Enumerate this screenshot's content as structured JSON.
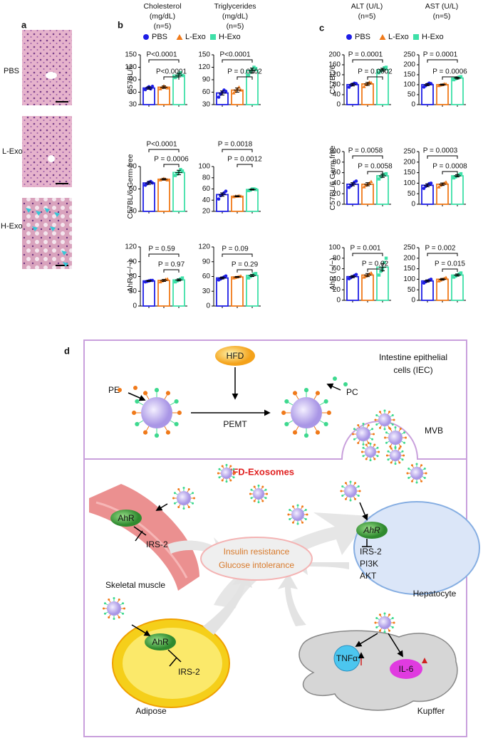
{
  "panel_labels": {
    "a": "a",
    "b": "b",
    "c": "c",
    "d": "d"
  },
  "histology": {
    "labels": [
      "PBS",
      "L-Exo",
      "H-Exo"
    ]
  },
  "column_headers": [
    [
      "Cholesterol",
      "(mg/dL)",
      "(n=5)"
    ],
    [
      "Triglycerides",
      "(mg/dL)",
      "(n=5)"
    ],
    [
      "ALT (U/L)",
      "(n=5)"
    ],
    [
      "AST (U/L)",
      "(n=5)"
    ]
  ],
  "row_labels": {
    "b": [
      "C57BL/6",
      "C57BL/6 Germ free",
      "AhR (−/−)"
    ],
    "c": [
      "C57BL/6",
      "C57BL/6 Germ free",
      "AhR (−/−)"
    ]
  },
  "legend": [
    {
      "name": "PBS",
      "color": "#1e1ee6"
    },
    {
      "name": "L-Exo",
      "color": "#f07a1a"
    },
    {
      "name": "H-Exo",
      "color": "#3ee0a8"
    }
  ],
  "chart_data": [
    {
      "type": "bar",
      "categories": [
        null,
        null,
        null
      ],
      "values": [
        70,
        72,
        101
      ],
      "errors": [
        3,
        3,
        4
      ],
      "points": [
        [
          66,
          70,
          73,
          68,
          74
        ],
        [
          68,
          71,
          75,
          72,
          70
        ],
        [
          95,
          98,
          104,
          107,
          100
        ]
      ],
      "ylim": [
        30,
        150
      ],
      "yticks": [
        30,
        60,
        90,
        120,
        150
      ],
      "annotations": [
        "P<0.0001",
        "P<0.0001"
      ]
    },
    {
      "type": "bar",
      "categories": [
        null,
        null,
        null
      ],
      "values": [
        58,
        65,
        112
      ],
      "errors": [
        5,
        5,
        6
      ],
      "points": [
        [
          48,
          55,
          60,
          65,
          62
        ],
        [
          58,
          62,
          68,
          72,
          65
        ],
        [
          100,
          108,
          115,
          120,
          117
        ]
      ],
      "ylim": [
        30,
        150
      ],
      "yticks": [
        30,
        60,
        90,
        120,
        150
      ],
      "annotations": [
        "P<0.0001",
        "P = 0.0002"
      ]
    },
    {
      "type": "bar",
      "categories": [
        null,
        null,
        null
      ],
      "values": [
        80,
        83,
        140
      ],
      "errors": [
        5,
        6,
        6
      ],
      "points": [
        [
          70,
          78,
          82,
          86,
          84
        ],
        [
          72,
          80,
          85,
          90,
          88
        ],
        [
          128,
          135,
          140,
          148,
          150
        ]
      ],
      "ylim": [
        0,
        200
      ],
      "yticks": [
        0,
        40,
        80,
        120,
        160,
        200
      ],
      "annotations": [
        "P = 0.0001",
        "P = 0.0002"
      ]
    },
    {
      "type": "bar",
      "categories": [
        null,
        null,
        null
      ],
      "values": [
        100,
        100,
        133
      ],
      "errors": [
        5,
        3,
        4
      ],
      "points": [
        [
          88,
          95,
          102,
          108,
          105
        ],
        [
          95,
          98,
          100,
          104,
          103
        ],
        [
          125,
          130,
          134,
          138,
          140
        ]
      ],
      "ylim": [
        0,
        250
      ],
      "yticks": [
        0,
        50,
        100,
        150,
        200,
        250
      ],
      "annotations": [
        "P = 0.0001",
        "P = 0.0006"
      ]
    },
    {
      "type": "bar",
      "categories": [
        null,
        null,
        null
      ],
      "values": [
        68,
        73,
        82
      ],
      "errors": [
        2,
        1,
        3
      ],
      "points": [
        [
          65,
          67,
          69,
          70,
          68
        ],
        [
          72,
          73,
          74,
          73,
          72
        ],
        [
          78,
          80,
          83,
          86,
          84
        ]
      ],
      "ylim": [
        30,
        90
      ],
      "yticks": [
        30,
        60,
        90
      ],
      "annotations": [
        "P<0.0001",
        "P = 0.0006"
      ]
    },
    {
      "type": "bar",
      "categories": [
        null,
        null,
        null
      ],
      "values": [
        50,
        47,
        59
      ],
      "errors": [
        3,
        1,
        1
      ],
      "points": [
        [
          42,
          48,
          50,
          53,
          56
        ],
        [
          46,
          47,
          47,
          48,
          47
        ],
        [
          57,
          58,
          60,
          60,
          59
        ]
      ],
      "ylim": [
        20,
        100
      ],
      "yticks": [
        20,
        40,
        60,
        80,
        100
      ],
      "annotations": [
        "P = 0.0018",
        "P = 0.0012"
      ]
    },
    {
      "type": "bar",
      "categories": [
        null,
        null,
        null
      ],
      "values": [
        38,
        38,
        54
      ],
      "errors": [
        3,
        3,
        3
      ],
      "points": [
        [
          32,
          35,
          38,
          42,
          44
        ],
        [
          33,
          36,
          38,
          40,
          43
        ],
        [
          48,
          52,
          55,
          57,
          58
        ]
      ],
      "ylim": [
        0,
        100
      ],
      "yticks": [
        0,
        20,
        40,
        60,
        80,
        100
      ],
      "annotations": [
        "P = 0.0058",
        "P = 0.0058"
      ]
    },
    {
      "type": "bar",
      "categories": [
        null,
        null,
        null
      ],
      "values": [
        90,
        95,
        135
      ],
      "errors": [
        7,
        6,
        5
      ],
      "points": [
        [
          75,
          85,
          92,
          98,
          100
        ],
        [
          82,
          90,
          96,
          100,
          105
        ],
        [
          125,
          130,
          135,
          140,
          145
        ]
      ],
      "ylim": [
        0,
        250
      ],
      "yticks": [
        0,
        50,
        100,
        150,
        200,
        250
      ],
      "annotations": [
        "P = 0.0003",
        "P = 0.0008"
      ]
    },
    {
      "type": "bar",
      "categories": [
        null,
        null,
        null
      ],
      "values": [
        51,
        52,
        53
      ],
      "errors": [
        1,
        2,
        2
      ],
      "points": [
        [
          49,
          50,
          51,
          52,
          52
        ],
        [
          49,
          51,
          52,
          54,
          55
        ],
        [
          49,
          51,
          53,
          55,
          57
        ]
      ],
      "ylim": [
        0,
        120
      ],
      "yticks": [
        0,
        30,
        60,
        90,
        120
      ],
      "annotations": [
        "P = 0.59",
        "P = 0.97"
      ]
    },
    {
      "type": "bar",
      "categories": [
        null,
        null,
        null
      ],
      "values": [
        57,
        59,
        62
      ],
      "errors": [
        2,
        1,
        2
      ],
      "points": [
        [
          53,
          55,
          57,
          59,
          61
        ],
        [
          57,
          58,
          59,
          60,
          61
        ],
        [
          57,
          60,
          62,
          65,
          66
        ]
      ],
      "ylim": [
        0,
        120
      ],
      "yticks": [
        0,
        30,
        60,
        90,
        120
      ],
      "annotations": [
        "P = 0.09",
        "P = 0.29"
      ]
    },
    {
      "type": "bar",
      "categories": [
        null,
        null,
        null
      ],
      "values": [
        45,
        48,
        63
      ],
      "errors": [
        2,
        3,
        7
      ],
      "points": [
        [
          41,
          43,
          45,
          47,
          49
        ],
        [
          44,
          46,
          48,
          50,
          52
        ],
        [
          48,
          55,
          60,
          72,
          80
        ]
      ],
      "ylim": [
        0,
        100
      ],
      "yticks": [
        0,
        20,
        40,
        60,
        80,
        100
      ],
      "annotations": [
        "P = 0.001",
        "P = 0.02"
      ]
    },
    {
      "type": "bar",
      "categories": [
        null,
        null,
        null
      ],
      "values": [
        92,
        100,
        120
      ],
      "errors": [
        5,
        4,
        5
      ],
      "points": [
        [
          82,
          88,
          92,
          96,
          100
        ],
        [
          92,
          96,
          100,
          104,
          108
        ],
        [
          110,
          115,
          120,
          125,
          130
        ]
      ],
      "ylim": [
        0,
        250
      ],
      "yticks": [
        0,
        50,
        100,
        150,
        200,
        250
      ],
      "annotations": [
        "P = 0.002",
        "P = 0.015"
      ]
    }
  ],
  "diagram": {
    "iec": [
      "Intestine epithelial",
      "cells (IEC)"
    ],
    "hfd": "HFD",
    "pe": "PE",
    "pc": "PC",
    "pemt": "PEMT",
    "mvb": "MVB",
    "exosomes": "HFD-Exosomes",
    "muscle_ahr": "AhR",
    "muscle_irs2": "IRS-2",
    "skeletal_muscle": "Skeletal muscle",
    "outcome": [
      "Insulin resistance",
      "Glucose intolerance"
    ],
    "hepatocyte_ahr": "AhR",
    "hepatocyte_pathway": [
      "IRS-2",
      "PI3K",
      "AKT"
    ],
    "hepatocyte": "Hepatocyte",
    "adipose_ahr": "AhR",
    "adipose_irs2": "IRS-2",
    "adipose": "Adipose",
    "tnfa": "TNFα",
    "il6": "IL-6",
    "kupffer": "Kupffer"
  }
}
